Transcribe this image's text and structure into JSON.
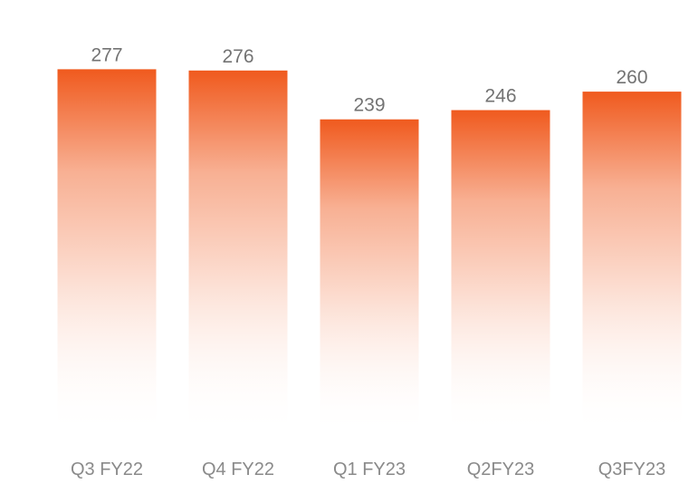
{
  "chart_data": {
    "type": "bar",
    "categories": [
      "Q3 FY22",
      "Q4 FY22",
      "Q1 FY23",
      "Q2FY23",
      "Q3FY23"
    ],
    "values": [
      277,
      276,
      239,
      246,
      260
    ],
    "data_labels": [
      "277",
      "276",
      "239",
      "246",
      "260"
    ],
    "title": "",
    "xlabel": "",
    "ylabel": "",
    "ylim": [
      0,
      280
    ],
    "grid": false,
    "legend": "none",
    "colors": {
      "bar_top": "#f05a1e",
      "bar_bottom": "#ffffff",
      "value_label": "#737373",
      "tick_label": "#8a8a8a"
    }
  }
}
